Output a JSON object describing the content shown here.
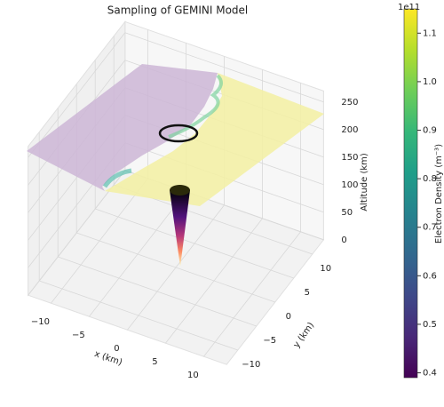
{
  "chart_data": {
    "type": "surface3d",
    "title": "Sampling of GEMINI Model",
    "xlabel": "x (km)",
    "ylabel": "y (km)",
    "zlabel": "Altitude (km)",
    "xlim": [
      -13,
      13
    ],
    "ylim": [
      -13,
      13
    ],
    "zlim": [
      0,
      270
    ],
    "xticks": [
      {
        "value": -10,
        "label": "−10"
      },
      {
        "value": -5,
        "label": "−5"
      },
      0,
      5,
      10
    ],
    "yticks": [
      {
        "value": -10,
        "label": "−10"
      },
      {
        "value": -5,
        "label": "−5"
      },
      0,
      5,
      10
    ],
    "zticks": [
      0,
      50,
      100,
      150,
      200,
      250
    ],
    "grid": true,
    "colorbar": {
      "label": "Electron Density (m⁻³)",
      "offset_label": "1e11",
      "colormap": "viridis",
      "lim": [
        0.39,
        1.15
      ],
      "ticks": [
        0.4,
        0.5,
        0.6,
        0.7,
        0.8,
        0.9,
        {
          "value": 1.0,
          "label": "1.0"
        },
        1.1
      ]
    }
  }
}
